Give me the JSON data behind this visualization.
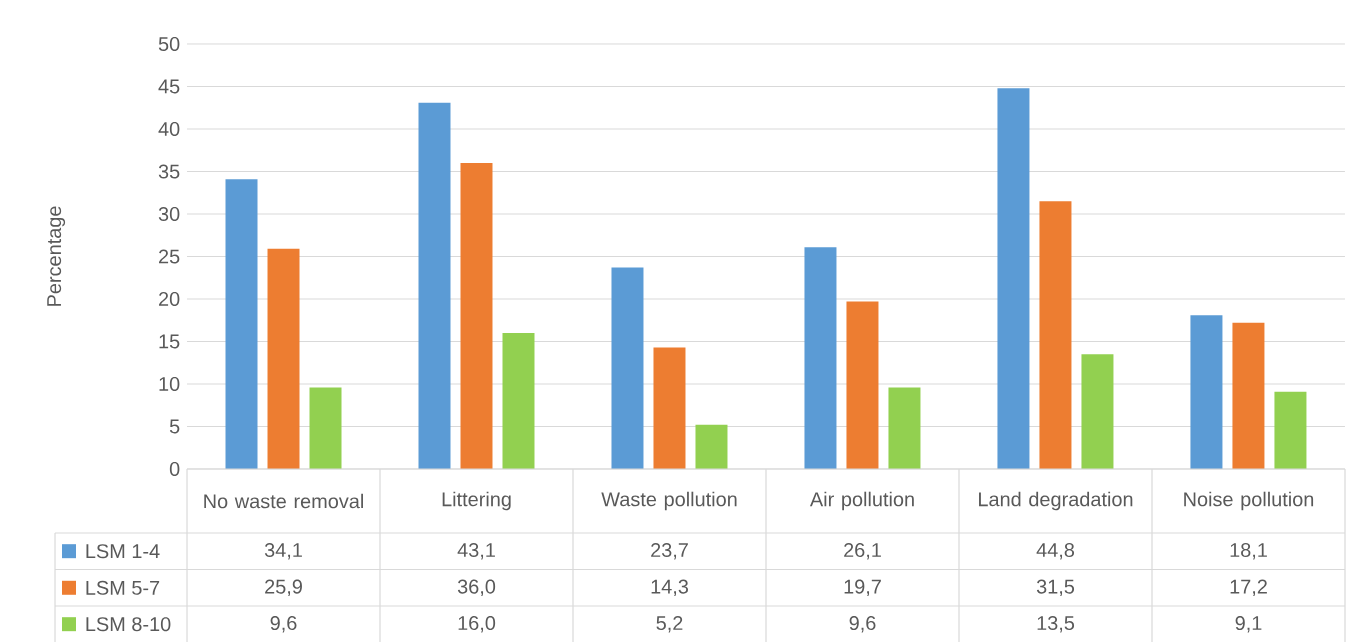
{
  "chart_data": {
    "type": "bar",
    "ylabel": "Percentage",
    "categories": [
      "No waste removal",
      "Littering",
      "Waste pollution",
      "Air pollution",
      "Land degradation",
      "Noise pollution"
    ],
    "series": [
      {
        "name": "LSM 1-4",
        "color": "#5b9bd5",
        "values": [
          34.1,
          43.1,
          23.7,
          26.1,
          44.8,
          18.1
        ],
        "value_labels": [
          "34,1",
          "43,1",
          "23,7",
          "26,1",
          "44,8",
          "18,1"
        ]
      },
      {
        "name": "LSM 5-7",
        "color": "#ed7d31",
        "values": [
          25.9,
          36.0,
          14.3,
          19.7,
          31.5,
          17.2
        ],
        "value_labels": [
          "25,9",
          "36,0",
          "14,3",
          "19,7",
          "31,5",
          "17,2"
        ]
      },
      {
        "name": "LSM 8-10",
        "color": "#92d050",
        "values": [
          9.6,
          16.0,
          5.2,
          9.6,
          13.5,
          9.1
        ],
        "value_labels": [
          "9,6",
          "16,0",
          "5,2",
          "9,6",
          "13,5",
          "9,1"
        ]
      }
    ],
    "ylim": [
      0,
      50
    ],
    "yticks": [
      0,
      5,
      10,
      15,
      20,
      25,
      30,
      35,
      40,
      45,
      50
    ],
    "grid": "y",
    "legend": "bottom"
  }
}
